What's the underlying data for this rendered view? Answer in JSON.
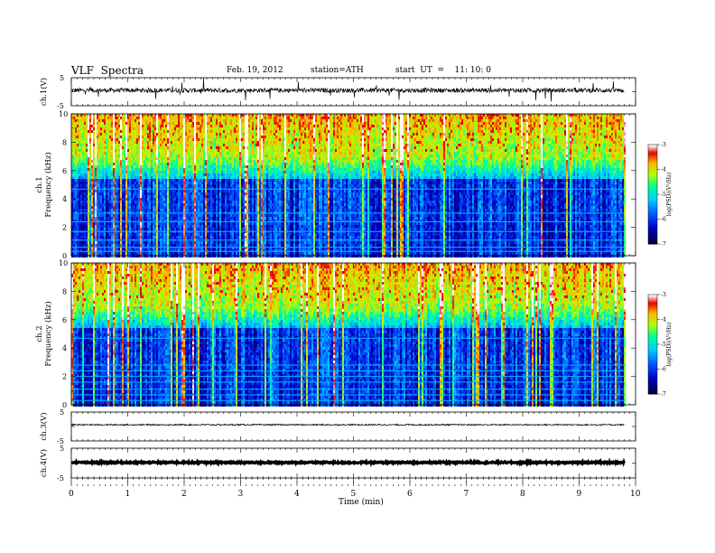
{
  "header": {
    "title": "VLF  Spectra",
    "date": "Feb. 19, 2012",
    "station": "station=ATH",
    "start": "start  UT  =    11: 10: 0"
  },
  "colors": {
    "background": "#ffffff",
    "axis": "#000000",
    "spectrogram_scale": [
      "#000050",
      "#0000ff",
      "#00c8ff",
      "#00ff80",
      "#c8ff00",
      "#ffa000",
      "#ff0000",
      "#ffffff"
    ]
  },
  "chart_data": [
    {
      "type": "line",
      "panel": "ch1-waveform",
      "ylabel": "ch.1(V)",
      "ylim": [
        -5,
        5
      ],
      "yticks": [
        "5",
        "-5"
      ],
      "xlim": [
        0,
        10
      ],
      "description_of_series": "noisy waveform around 0 V with spikes",
      "series": [
        {
          "x": [
            0,
            1,
            2,
            3,
            4,
            5,
            6,
            7,
            8,
            9,
            9.8
          ],
          "y": [
            0,
            0,
            0,
            0,
            0,
            0,
            0,
            0,
            0,
            0,
            0
          ]
        }
      ]
    },
    {
      "type": "heatmap",
      "panel": "ch1-spectrogram",
      "ylabel": "ch.1\nFrequency (kHz)",
      "ylabel_lines": [
        "ch.1",
        "Frequency (kHz)"
      ],
      "ylim": [
        0,
        10
      ],
      "yticks": [
        "0",
        "2",
        "4",
        "6",
        "8",
        "10"
      ],
      "xlim": [
        0,
        10
      ],
      "data_end_min": 9.8,
      "colorbar": {
        "label": "log(PSD)(V²/Hz)",
        "range": [
          -7,
          -3
        ],
        "ticks": [
          "-3",
          "-4",
          "-5",
          "-6",
          "-7"
        ]
      }
    },
    {
      "type": "heatmap",
      "panel": "ch2-spectrogram",
      "ylabel_lines": [
        "ch.2",
        "Frequency (kHz)"
      ],
      "ylim": [
        0,
        10
      ],
      "yticks": [
        "0",
        "2",
        "4",
        "6",
        "8",
        "10"
      ],
      "xlim": [
        0,
        10
      ],
      "data_end_min": 9.8,
      "colorbar": {
        "label": "log(PSD)(V²/Hz)",
        "range": [
          -7,
          -3
        ],
        "ticks": [
          "-3",
          "-4",
          "-5",
          "-6",
          "-7"
        ]
      }
    },
    {
      "type": "line",
      "panel": "ch3-waveform",
      "ylabel": "ch.3(V)",
      "ylim": [
        -5,
        5
      ],
      "yticks": [
        "5",
        "-5"
      ],
      "xlim": [
        0,
        10
      ],
      "series": [
        {
          "x": [
            0,
            9.8
          ],
          "y": [
            0,
            0
          ]
        }
      ]
    },
    {
      "type": "line",
      "panel": "ch4-waveform",
      "ylabel": "ch.4(V)",
      "ylim": [
        -5,
        5
      ],
      "yticks": [
        "5",
        "-5"
      ],
      "xlim": [
        0,
        10
      ],
      "series": [
        {
          "x": [
            0,
            9.8
          ],
          "y": [
            0,
            0
          ]
        }
      ]
    }
  ],
  "xaxis": {
    "label": "Time  (min)",
    "ticks": [
      "0",
      "1",
      "2",
      "3",
      "4",
      "5",
      "6",
      "7",
      "8",
      "9",
      "10"
    ]
  }
}
